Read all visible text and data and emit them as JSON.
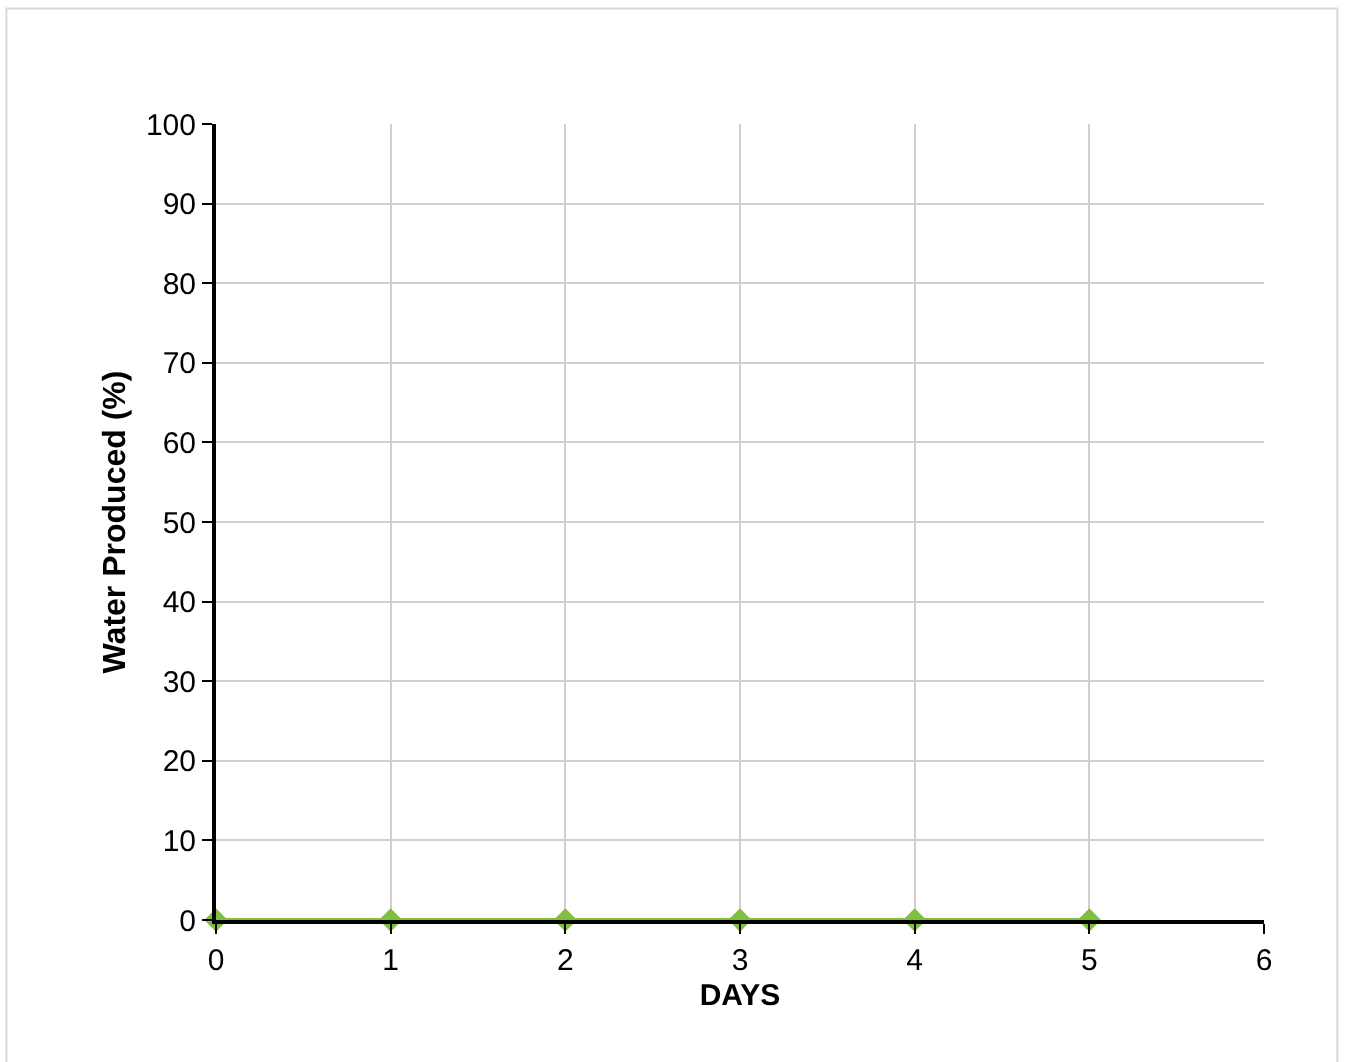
{
  "chart_data": {
    "type": "line",
    "xlabel": "DAYS",
    "ylabel": "Water Produced (%)",
    "x": [
      0,
      1,
      2,
      3,
      4,
      5
    ],
    "series": [
      {
        "color": "#7fbf3f",
        "values": [
          0,
          0,
          0,
          0,
          0,
          0
        ]
      }
    ],
    "xlim": [
      0,
      6
    ],
    "xticks": [
      0,
      1,
      2,
      3,
      4,
      5,
      6
    ],
    "ylim": [
      0,
      100
    ],
    "yticks": [
      0,
      10,
      20,
      30,
      40,
      50,
      60,
      70,
      80,
      90,
      100
    ],
    "grid": true,
    "marker": "diamond",
    "line_style": "solid"
  }
}
